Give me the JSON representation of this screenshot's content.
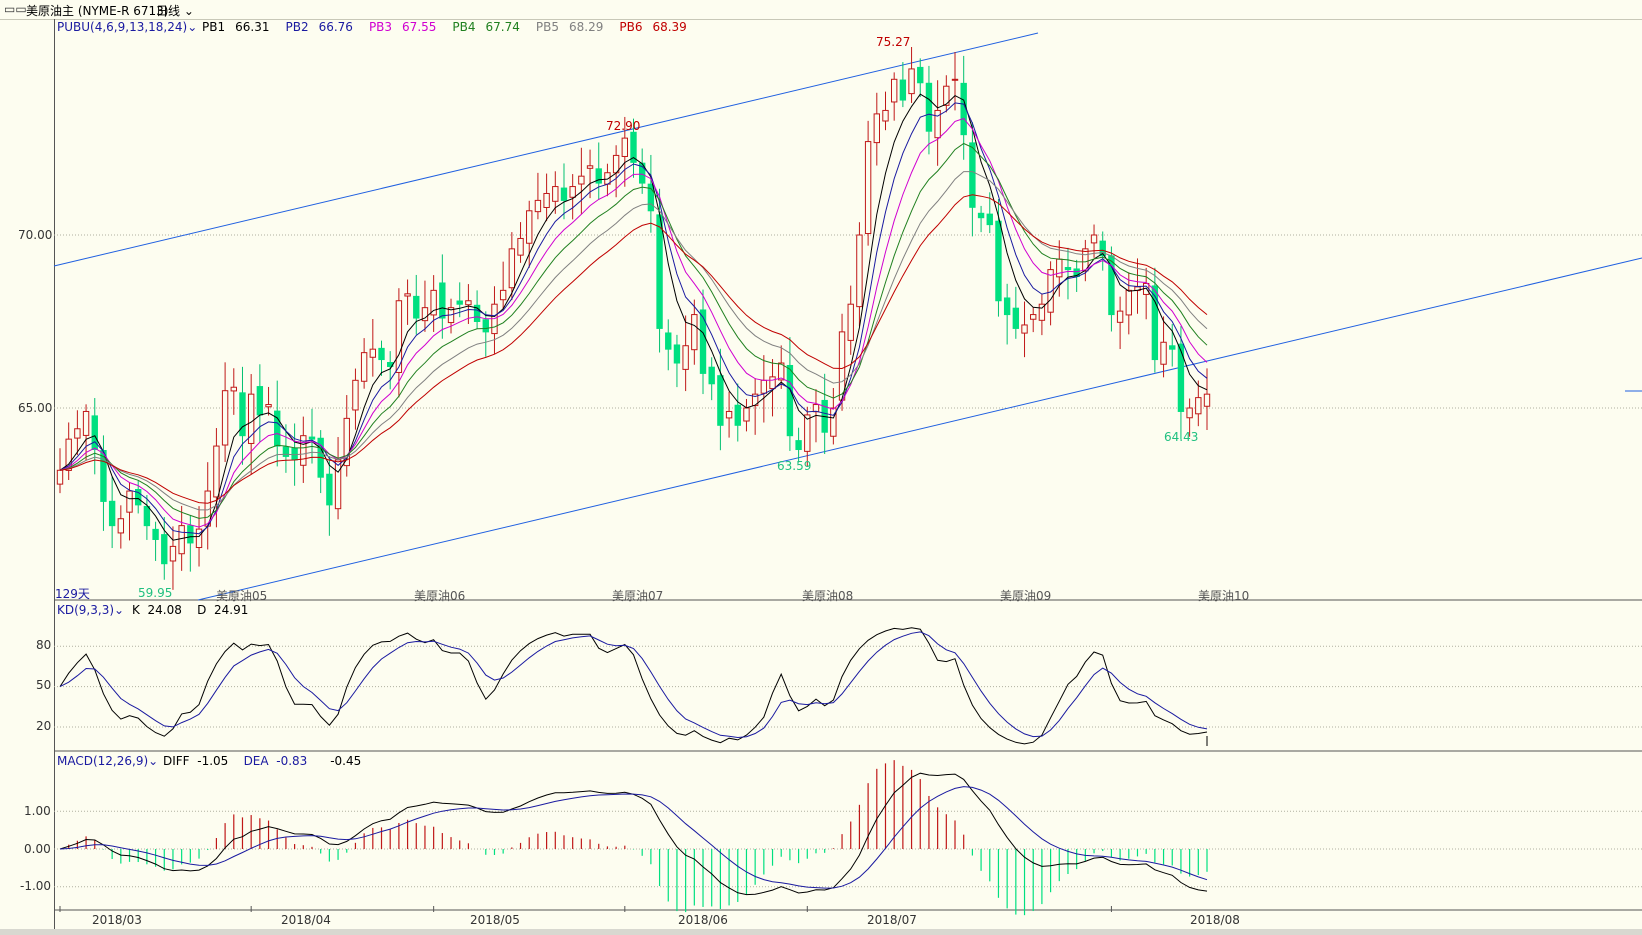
{
  "window": {
    "title": "美原油主 (NYME-R 6713)",
    "period": "日线"
  },
  "main_panel": {
    "indicator": "PUBU(4,6,9,13,18,24)",
    "readouts": [
      {
        "name": "PB1",
        "value": "66.31",
        "color": "#000000"
      },
      {
        "name": "PB2",
        "value": "66.76",
        "color": "#1a1aa0"
      },
      {
        "name": "PB3",
        "value": "67.55",
        "color": "#d000d0"
      },
      {
        "name": "PB4",
        "value": "67.74",
        "color": "#208020"
      },
      {
        "name": "PB5",
        "value": "68.29",
        "color": "#808080"
      },
      {
        "name": "PB6",
        "value": "68.39",
        "color": "#c00000"
      }
    ],
    "y_ticks": [
      "70.00",
      "65.00"
    ],
    "day_count": "129天",
    "annotations": [
      {
        "text": "75.27",
        "color": "#c00000"
      },
      {
        "text": "72.90",
        "color": "#c00000"
      },
      {
        "text": "63.59",
        "color": "#20c080"
      },
      {
        "text": "64.43",
        "color": "#20c080"
      },
      {
        "text": "59.95",
        "color": "#20c080"
      }
    ],
    "contract_labels": [
      "美原油05",
      "美原油06",
      "美原油07",
      "美原油08",
      "美原油09",
      "美原油10"
    ]
  },
  "kd_panel": {
    "indicator": "KD(9,3,3)",
    "k_label": "K",
    "k_value": "24.08",
    "d_label": "D",
    "d_value": "24.91",
    "y_ticks": [
      "80",
      "50",
      "20"
    ]
  },
  "macd_panel": {
    "indicator": "MACD(12,26,9)",
    "diff_label": "DIFF",
    "diff_value": "-1.05",
    "dea_label": "DEA",
    "dea_value": "-0.83",
    "macd_value": "-0.45",
    "y_ticks": [
      "1.00",
      "0.00",
      "-1.00"
    ]
  },
  "x_axis": {
    "months": [
      "2018/03",
      "2018/04",
      "2018/05",
      "2018/06",
      "2018/07",
      "2018/08"
    ]
  },
  "chart_data": [
    {
      "type": "candlestick",
      "title": "美原油主 (NYME-R 6713)",
      "x_range": [
        "2018-02-26",
        "2018-08-03"
      ],
      "ylim": [
        59.5,
        76.5
      ],
      "grid": true,
      "closes": [
        63.2,
        64.1,
        64.4,
        64.9,
        63.8,
        62.3,
        61.6,
        61.8,
        62.6,
        62.2,
        61.6,
        61.2,
        60.5,
        61.0,
        61.6,
        61.1,
        61.5,
        62.6,
        63.9,
        65.5,
        65.6,
        64.2,
        65.4,
        64.8,
        65.1,
        63.9,
        63.6,
        63.5,
        64.2,
        64.1,
        63.0,
        62.2,
        63.5,
        64.7,
        65.8,
        66.6,
        66.7,
        66.4,
        66.2,
        68.1,
        68.3,
        67.6,
        67.9,
        68.4,
        67.6,
        67.9,
        68.0,
        68.1,
        67.5,
        67.2,
        68.0,
        68.4,
        69.6,
        69.9,
        70.7,
        71.0,
        71.2,
        71.4,
        71.0,
        71.4,
        71.7,
        72.0,
        71.5,
        71.8,
        72.3,
        72.8,
        72.1,
        71.5,
        70.7,
        67.3,
        66.7,
        66.3,
        66.8,
        67.7,
        66.0,
        65.7,
        64.5,
        64.9,
        64.5,
        65.0,
        65.4,
        65.8,
        65.9,
        66.3,
        64.2,
        63.8,
        64.8,
        65.1,
        64.3,
        65.0,
        67.2,
        68.0,
        70.0,
        72.7,
        73.5,
        73.6,
        74.5,
        73.9,
        74.8,
        74.4,
        73.0,
        73.6,
        74.3,
        74.5,
        72.9,
        70.8,
        70.5,
        70.3,
        68.1,
        67.7,
        67.3,
        67.4,
        67.7,
        68.0,
        69.0,
        69.3,
        69.0,
        68.8,
        69.6,
        70.0,
        69.4,
        67.7,
        67.8,
        68.4,
        68.5,
        68.6,
        66.4,
        66.9,
        66.7,
        64.9,
        65.0,
        65.3,
        65.4
      ],
      "series": [
        {
          "name": "PB1",
          "last": 66.31
        },
        {
          "name": "PB2",
          "last": 66.76
        },
        {
          "name": "PB3",
          "last": 67.55
        },
        {
          "name": "PB4",
          "last": 67.74
        },
        {
          "name": "PB5",
          "last": 68.29
        },
        {
          "name": "PB6",
          "last": 68.39
        }
      ],
      "annotations": [
        {
          "label": "75.27",
          "kind": "high"
        },
        {
          "label": "72.90",
          "kind": "high"
        },
        {
          "label": "63.59",
          "kind": "low"
        },
        {
          "label": "64.43",
          "kind": "low"
        },
        {
          "label": "59.95",
          "kind": "low"
        }
      ]
    },
    {
      "type": "line",
      "title": "KD(9,3,3)",
      "ylim": [
        0,
        100
      ],
      "series": [
        {
          "name": "K",
          "last": 24.08
        },
        {
          "name": "D",
          "last": 24.91
        }
      ]
    },
    {
      "type": "bar",
      "title": "MACD(12,26,9)",
      "ylim": [
        -1.6,
        2.0
      ],
      "series": [
        {
          "name": "DIFF",
          "last": -1.05
        },
        {
          "name": "DEA",
          "last": -0.83
        },
        {
          "name": "MACD",
          "last": -0.45
        }
      ]
    }
  ]
}
